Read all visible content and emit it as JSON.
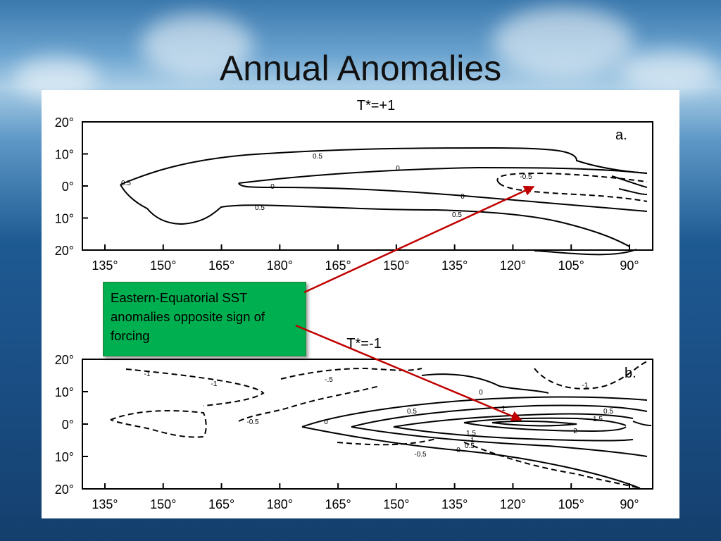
{
  "slide": {
    "title": "Annual Anomalies"
  },
  "callout": {
    "text": "Eastern-Equatorial SST anomalies opposite sign of forcing",
    "color": "#00b050"
  },
  "arrow_color": "#c00000",
  "chart_data": [
    {
      "type": "contour",
      "title": "T*=+1",
      "panel_label": "a.",
      "x_ticks": [
        "135°",
        "150°",
        "165°",
        "180°",
        "165°",
        "150°",
        "135°",
        "120°",
        "105°",
        "90°"
      ],
      "y_ticks": [
        "20°",
        "10°",
        "0°",
        "10°",
        "20°"
      ],
      "contour_levels": [
        "0.5",
        "0",
        "-0.5",
        "0.5",
        "0",
        "0.5",
        "0",
        "0.5"
      ]
    },
    {
      "type": "contour",
      "title": "T*=-1",
      "panel_label": "b.",
      "x_ticks": [
        "135°",
        "150°",
        "165°",
        "180°",
        "165°",
        "150°",
        "135°",
        "120°",
        "105°",
        "90°"
      ],
      "y_ticks": [
        "20°",
        "10°",
        "0°",
        "10°",
        "20°"
      ],
      "contour_levels": [
        "-1",
        "-1",
        "-.5",
        "-0.5",
        "-1",
        "0",
        "0",
        "0.5",
        "1",
        "0.5",
        "1.5",
        "1.5",
        "2",
        "1",
        "0.5",
        "0",
        "-0.5"
      ]
    }
  ]
}
